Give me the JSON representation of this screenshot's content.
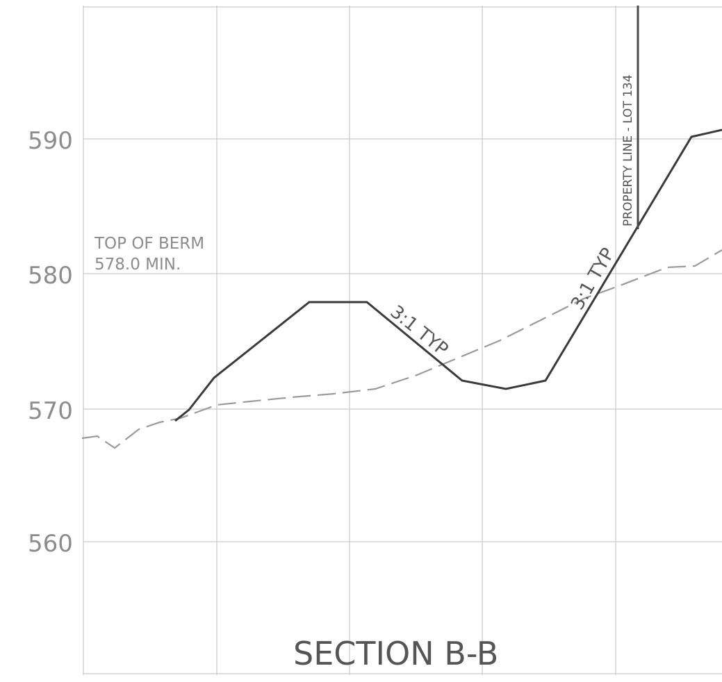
{
  "drawing": {
    "title": "SECTION B-B",
    "elevation_labels": [
      "590",
      "580",
      "570",
      "560"
    ],
    "notes": {
      "berm_line1": "TOP OF BERM",
      "berm_line2": "578.0 MIN.",
      "slope_left": "3:1 TYP",
      "slope_right": "3:1 TYP",
      "property_line": "PROPERTY LINE - LOT 134"
    }
  },
  "chart_data": {
    "type": "line",
    "y_axis": {
      "ticks": [
        590,
        580,
        570,
        560
      ],
      "range": [
        550,
        600
      ]
    },
    "grid": true,
    "series": [
      {
        "line_style": "solid",
        "color": "#3a3a3a",
        "y": [
          569.2,
          570.0,
          572.3,
          578.0,
          578.0,
          572.1,
          571.6,
          572.1,
          590.2,
          590.7
        ]
      },
      {
        "line_style": "dashed",
        "color": "#9a9a9a",
        "y": [
          568.0,
          568.2,
          567.0,
          568.8,
          569.5,
          570.4,
          570.7,
          571.2,
          571.5,
          571.8,
          572.0,
          573.5,
          575.0,
          577.0,
          578.8,
          579.8,
          580.5,
          580.6,
          582.0
        ]
      }
    ],
    "colors": {
      "grid": "#c9c9c9",
      "text": "#8c8c8c",
      "profile": "#3a3a3a",
      "existing": "#9a9a9a"
    }
  }
}
